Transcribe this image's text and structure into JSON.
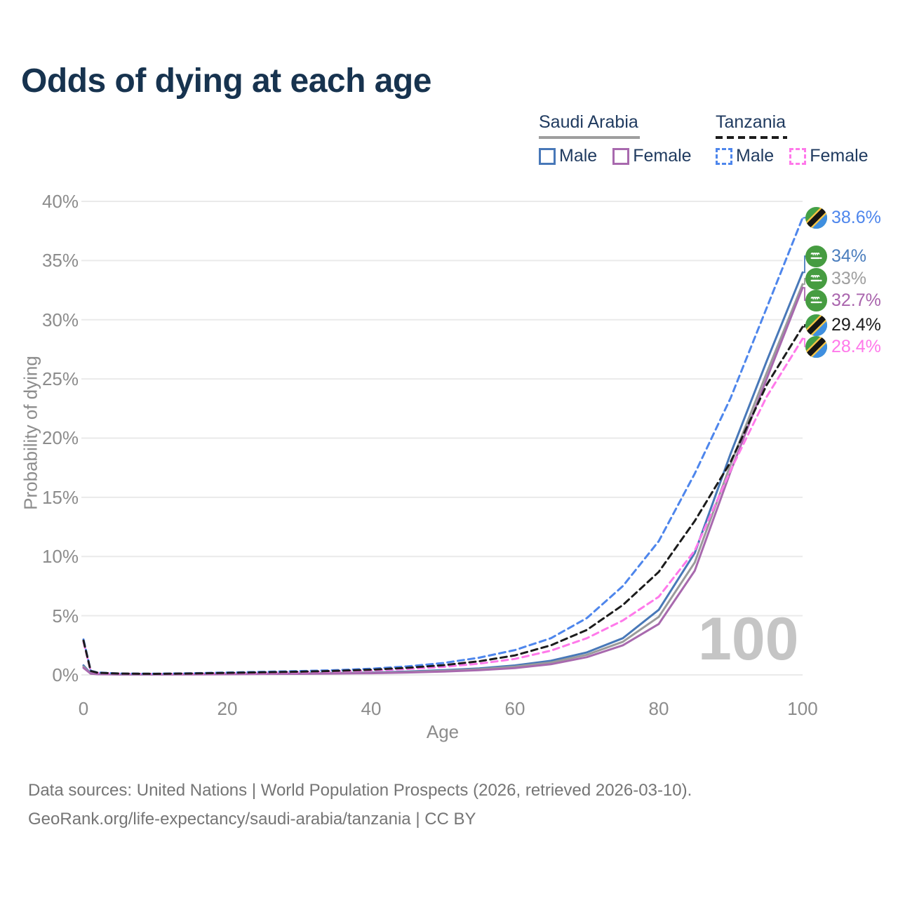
{
  "title": "Odds of dying at each age",
  "legend": {
    "groups": [
      {
        "country": "Saudi Arabia",
        "line_style": "solid",
        "underline_color": "#9e9e9e",
        "items": [
          {
            "label": "Male",
            "color": "#4878b8"
          },
          {
            "label": "Female",
            "color": "#a869ae"
          }
        ]
      },
      {
        "country": "Tanzania",
        "line_style": "dashed",
        "underline_color": "#1c1c1c",
        "items": [
          {
            "label": "Male",
            "color": "#4e86ec"
          },
          {
            "label": "Female",
            "color": "#ff79ea"
          }
        ]
      }
    ]
  },
  "axes": {
    "y_title": "Probability of dying",
    "x_title": "Age",
    "y_ticks": [
      "40%",
      "35%",
      "30%",
      "25%",
      "20%",
      "15%",
      "10%",
      "5%",
      "0%"
    ],
    "x_ticks": [
      "0",
      "20",
      "40",
      "60",
      "80",
      "100"
    ]
  },
  "watermark": "100",
  "end_labels": [
    {
      "value": "38.6%",
      "flag": "tanzania",
      "series": "Tanzania Male",
      "color": "#4e86ec"
    },
    {
      "value": "34%",
      "flag": "saudi-arabia",
      "series": "Saudi Arabia Male",
      "color": "#4a7dbd"
    },
    {
      "value": "33%",
      "flag": "saudi-arabia",
      "series": "Saudi Arabia Both sexes",
      "color": "#9e9e9e"
    },
    {
      "value": "32.7%",
      "flag": "saudi-arabia",
      "series": "Saudi Arabia Female",
      "color": "#a964ad"
    },
    {
      "value": "29.4%",
      "flag": "tanzania",
      "series": "Tanzania Both sexes",
      "color": "#1c1c1c"
    },
    {
      "value": "28.4%",
      "flag": "tanzania",
      "series": "Tanzania Female",
      "color": "#ff79ea"
    }
  ],
  "footer": {
    "line1": "Data sources: United Nations | World Population Prospects (2026, retrieved 2026-03-10).",
    "line2": "GeoRank.org/life-expectancy/saudi-arabia/tanzania | CC BY"
  },
  "chart_data": {
    "type": "line",
    "title": "Odds of dying at each age",
    "xlabel": "Age",
    "ylabel": "Probability of dying",
    "xlim": [
      0,
      100
    ],
    "ylim_percent": [
      0,
      40
    ],
    "grid": true,
    "legend_position": "top-right",
    "y_ticks_pct": [
      0,
      5,
      10,
      15,
      20,
      25,
      30,
      35,
      40
    ],
    "x_ticks": [
      0,
      20,
      40,
      60,
      80,
      100
    ],
    "x": [
      0,
      1,
      2,
      5,
      10,
      15,
      20,
      25,
      30,
      35,
      40,
      45,
      50,
      55,
      60,
      65,
      70,
      75,
      80,
      85,
      90,
      95,
      100
    ],
    "series": [
      {
        "name": "Saudi Arabia Male",
        "country": "Saudi Arabia",
        "sex": "Male",
        "color": "#4878b8",
        "dashed": false,
        "end_label": "34%",
        "values_pct": [
          0.8,
          0.12,
          0.08,
          0.05,
          0.05,
          0.07,
          0.1,
          0.12,
          0.13,
          0.16,
          0.2,
          0.28,
          0.4,
          0.55,
          0.8,
          1.2,
          1.9,
          3.1,
          5.5,
          10.3,
          18.7,
          26.5,
          34.0
        ]
      },
      {
        "name": "Saudi Arabia Both sexes",
        "country": "Saudi Arabia",
        "sex": "Both sexes",
        "color": "#9b9b9b",
        "dashed": false,
        "end_label": "33%",
        "values_pct": [
          0.7,
          0.11,
          0.07,
          0.045,
          0.045,
          0.06,
          0.08,
          0.1,
          0.11,
          0.14,
          0.17,
          0.24,
          0.34,
          0.48,
          0.7,
          1.05,
          1.7,
          2.8,
          4.9,
          9.5,
          17.8,
          25.5,
          33.0
        ]
      },
      {
        "name": "Saudi Arabia Female",
        "country": "Saudi Arabia",
        "sex": "Female",
        "color": "#a869ae",
        "dashed": false,
        "end_label": "32.7%",
        "values_pct": [
          0.6,
          0.1,
          0.06,
          0.04,
          0.04,
          0.05,
          0.06,
          0.08,
          0.09,
          0.11,
          0.14,
          0.2,
          0.28,
          0.4,
          0.58,
          0.9,
          1.5,
          2.5,
          4.3,
          8.8,
          17.2,
          25.0,
          32.7
        ]
      },
      {
        "name": "Tanzania Male",
        "country": "Tanzania",
        "sex": "Male",
        "color": "#4e86ec",
        "dashed": true,
        "end_label": "38.6%",
        "values_pct": [
          3.0,
          0.35,
          0.2,
          0.12,
          0.1,
          0.14,
          0.2,
          0.26,
          0.32,
          0.4,
          0.52,
          0.72,
          1.0,
          1.45,
          2.1,
          3.1,
          4.8,
          7.5,
          11.3,
          17.0,
          23.4,
          31.0,
          38.6
        ]
      },
      {
        "name": "Tanzania Female",
        "country": "Tanzania",
        "sex": "Female",
        "color": "#ff79ea",
        "dashed": true,
        "end_label": "28.4%",
        "values_pct": [
          2.8,
          0.31,
          0.17,
          0.1,
          0.08,
          0.1,
          0.14,
          0.18,
          0.23,
          0.29,
          0.37,
          0.5,
          0.68,
          0.95,
          1.35,
          2.05,
          3.1,
          4.6,
          6.6,
          10.5,
          17.3,
          23.5,
          28.4
        ]
      },
      {
        "name": "Tanzania Both sexes",
        "country": "Tanzania",
        "sex": "Both sexes",
        "color": "#1c1c1c",
        "dashed": true,
        "end_label": "29.4%",
        "values_pct": [
          2.9,
          0.33,
          0.18,
          0.11,
          0.09,
          0.12,
          0.17,
          0.22,
          0.27,
          0.34,
          0.44,
          0.6,
          0.82,
          1.15,
          1.65,
          2.5,
          3.8,
          5.9,
          8.7,
          13.0,
          18.0,
          24.5,
          29.4
        ]
      }
    ]
  }
}
